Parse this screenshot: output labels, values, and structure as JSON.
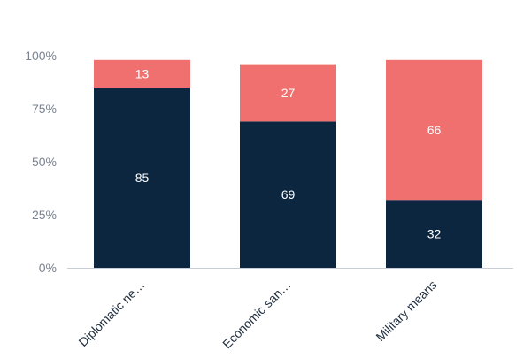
{
  "chart_data": {
    "type": "bar",
    "stacked": true,
    "categories": [
      "Diplomatic ne…",
      "Economic san…",
      "Military means"
    ],
    "series": [
      {
        "values": [
          85,
          69,
          32
        ],
        "color": "#0c2640"
      },
      {
        "values": [
          13,
          27,
          66
        ],
        "color": "#f07070"
      }
    ],
    "ylim": [
      0,
      100
    ],
    "y_ticks": [
      0,
      25,
      50,
      75,
      100
    ],
    "y_tick_labels": [
      "0%",
      "25%",
      "50%",
      "75%",
      "100%"
    ],
    "grid": false,
    "legend": "none",
    "title": "",
    "xlabel": "",
    "ylabel": ""
  }
}
